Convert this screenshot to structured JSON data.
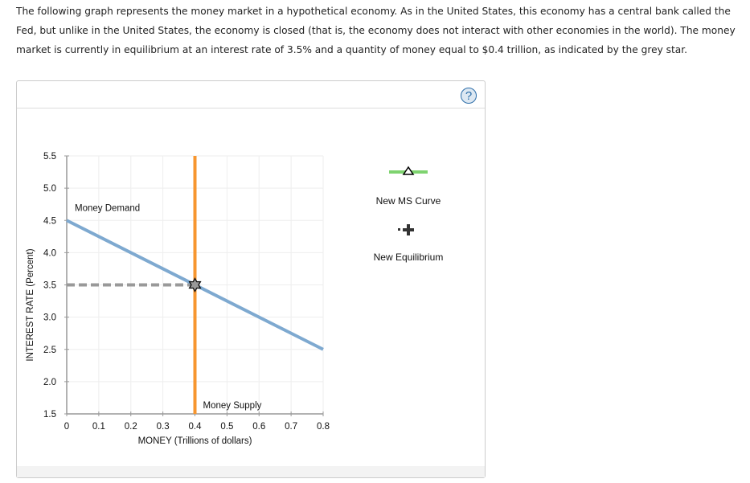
{
  "intro": "The following graph represents the money market in a hypothetical economy. As in the United States, this economy has a central bank called the Fed, but unlike in the United States, the economy is closed (that is, the economy does not interact with other economies in the world). The money market is currently in equilibrium at an interest rate of 3.5% and a quantity of money equal to $0.4 trillion, as indicated by the grey star.",
  "help_label": "?",
  "chart_data": {
    "type": "line",
    "xlabel": "MONEY (Trillions of dollars)",
    "ylabel": "INTEREST RATE (Percent)",
    "xlim": [
      0,
      0.8
    ],
    "ylim": [
      1.5,
      5.5
    ],
    "xticks": [
      "0",
      "0.1",
      "0.2",
      "0.3",
      "0.4",
      "0.5",
      "0.6",
      "0.7",
      "0.8"
    ],
    "yticks": [
      "1.5",
      "2.0",
      "2.5",
      "3.0",
      "3.5",
      "4.0",
      "4.5",
      "5.0",
      "5.5"
    ],
    "grid": true,
    "series": [
      {
        "name": "Money Demand",
        "color": "#7ea9d0",
        "points": [
          [
            0,
            4.5
          ],
          [
            0.8,
            2.5
          ]
        ]
      },
      {
        "name": "Money Supply",
        "color": "#f7962f",
        "points": [
          [
            0.4,
            1.5
          ],
          [
            0.4,
            5.5
          ]
        ]
      }
    ],
    "equilibrium": {
      "x": 0.4,
      "y": 3.5,
      "marker": "grey-star",
      "color": "#999999"
    },
    "legend": {
      "placement": "right",
      "items": [
        {
          "label": "New MS Curve",
          "icon": "green-line-triangle",
          "color": "#7ed36f"
        },
        {
          "label": "New Equilibrium",
          "icon": "plus-marker",
          "color": "#333333"
        }
      ]
    }
  }
}
